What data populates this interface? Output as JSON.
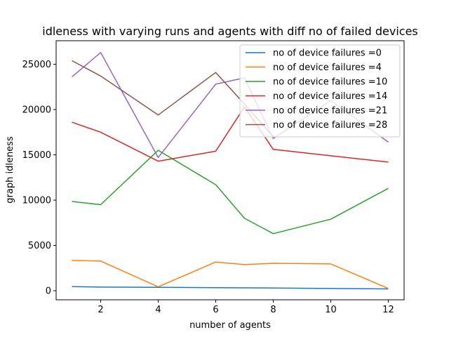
{
  "chart_data": {
    "type": "line",
    "title": "idleness with varying runs and agents with diff no of failed devices",
    "xlabel": "number of agents",
    "ylabel": "graph idleness",
    "xlim": [
      0.45,
      12.55
    ],
    "ylim": [
      -1000,
      27600
    ],
    "x_ticks": [
      2,
      4,
      6,
      8,
      10,
      12
    ],
    "y_ticks": [
      0,
      5000,
      10000,
      15000,
      20000,
      25000
    ],
    "x_tick_labels": [
      "2",
      "4",
      "6",
      "8",
      "10",
      "12"
    ],
    "y_tick_labels": [
      "0",
      "5000",
      "10000",
      "15000",
      "20000",
      "25000"
    ],
    "grid": false,
    "legend_position": "top-right",
    "series": [
      {
        "name": "no of device failures =0",
        "color": "#1f77b4",
        "x": [
          1,
          2,
          4,
          6,
          8,
          10,
          12
        ],
        "y": [
          450,
          400,
          380,
          330,
          300,
          250,
          200
        ]
      },
      {
        "name": "no of device failures =4",
        "color": "#ff7f0e",
        "x": [
          1,
          2,
          4,
          6,
          7,
          8,
          10,
          12
        ],
        "y": [
          3350,
          3280,
          430,
          3170,
          2880,
          3030,
          2960,
          250
        ]
      },
      {
        "name": "no of device failures =10",
        "color": "#2ca02c",
        "x": [
          1,
          2,
          4,
          6,
          7,
          8,
          10,
          12
        ],
        "y": [
          9850,
          9500,
          15500,
          11700,
          8000,
          6300,
          7900,
          11300
        ]
      },
      {
        "name": "no of device failures =14",
        "color": "#d62728",
        "x": [
          1,
          2,
          4,
          6,
          7,
          8,
          10,
          12
        ],
        "y": [
          18600,
          17500,
          14300,
          15400,
          20300,
          15600,
          14900,
          14200
        ]
      },
      {
        "name": "no of device failures =21",
        "color": "#9467bd",
        "x": [
          1,
          2,
          4,
          6,
          7,
          8,
          10,
          12
        ],
        "y": [
          23600,
          26300,
          14700,
          22800,
          23500,
          16800,
          21000,
          16400
        ]
      },
      {
        "name": "no of device failures =28",
        "color": "#8c564b",
        "x": [
          1,
          2,
          4,
          6,
          7,
          8
        ],
        "y": [
          25400,
          23700,
          19400,
          24100,
          20600,
          17000
        ]
      }
    ]
  }
}
